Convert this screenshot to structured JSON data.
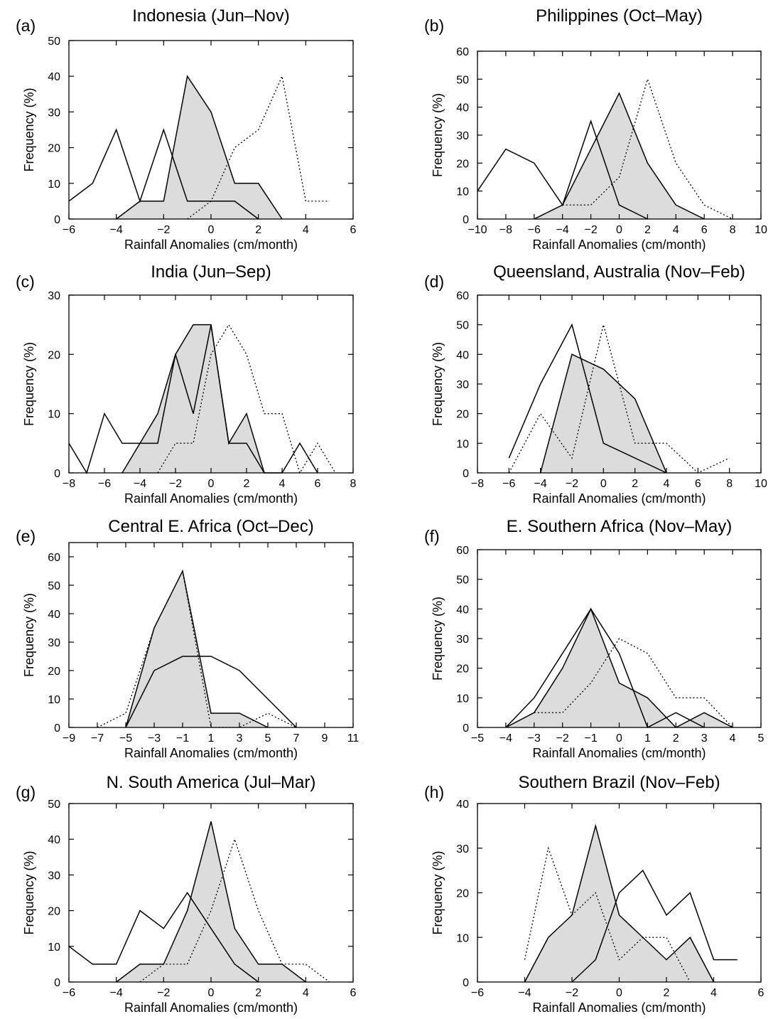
{
  "chart_data": [
    {
      "type": "line",
      "panel_label": "(a)",
      "title": "Indonesia (Jun–Nov)",
      "xlabel": "Rainfall Anomalies (cm/month)",
      "ylabel": "Frequency (%)",
      "xlim": [
        -6,
        6
      ],
      "ylim": [
        0,
        50
      ],
      "xticks": [
        -6,
        -4,
        -2,
        0,
        2,
        4,
        6
      ],
      "yticks": [
        0,
        10,
        20,
        30,
        40,
        50
      ],
      "grid": false,
      "series": [
        {
          "style": "shaded",
          "x": [
            -4,
            -3,
            -2,
            -1,
            0,
            1,
            2,
            3
          ],
          "y": [
            0,
            5,
            5,
            40,
            30,
            10,
            10,
            0
          ]
        },
        {
          "style": "solid",
          "x": [
            -6,
            -5,
            -4,
            -3,
            -2,
            -1,
            0,
            1,
            2
          ],
          "y": [
            5,
            10,
            25,
            5,
            25,
            5,
            5,
            5,
            0
          ]
        },
        {
          "style": "dotted",
          "x": [
            -1,
            0,
            1,
            2,
            3,
            4,
            5
          ],
          "y": [
            0,
            5,
            20,
            25,
            40,
            5,
            5
          ]
        }
      ]
    },
    {
      "type": "line",
      "panel_label": "(b)",
      "title": "Philippines (Oct–May)",
      "xlabel": "Rainfall Anomalies (cm/month)",
      "ylabel": "Frequency (%)",
      "xlim": [
        -10,
        10
      ],
      "ylim": [
        0,
        60
      ],
      "xticks": [
        -10,
        -8,
        -6,
        -4,
        -2,
        0,
        2,
        4,
        6,
        8,
        10
      ],
      "yticks": [
        0,
        10,
        20,
        30,
        40,
        50,
        60
      ],
      "grid": false,
      "series": [
        {
          "style": "shaded",
          "x": [
            -6,
            -4,
            -2,
            0,
            2,
            4,
            6
          ],
          "y": [
            0,
            5,
            25,
            45,
            20,
            5,
            0
          ]
        },
        {
          "style": "solid",
          "x": [
            -10,
            -8,
            -6,
            -4,
            -2,
            0,
            2
          ],
          "y": [
            10,
            25,
            20,
            5,
            35,
            5,
            0
          ]
        },
        {
          "style": "dotted",
          "x": [
            -4,
            -2,
            0,
            2,
            4,
            6,
            8
          ],
          "y": [
            5,
            5,
            15,
            50,
            20,
            5,
            0
          ]
        }
      ]
    },
    {
      "type": "line",
      "panel_label": "(c)",
      "title": "India (Jun–Sep)",
      "xlabel": "Rainfall Anomalies (cm/month)",
      "ylabel": "Frequency (%)",
      "xlim": [
        -8,
        8
      ],
      "ylim": [
        0,
        30
      ],
      "xticks": [
        -8,
        -6,
        -4,
        -2,
        0,
        2,
        4,
        6,
        8
      ],
      "yticks": [
        0,
        10,
        20,
        30
      ],
      "grid": false,
      "series": [
        {
          "style": "shaded",
          "x": [
            -5,
            -4,
            -3,
            -2,
            -1,
            0,
            1,
            2,
            3
          ],
          "y": [
            0,
            5,
            10,
            20,
            25,
            25,
            5,
            10,
            0
          ]
        },
        {
          "style": "solid",
          "x": [
            -8,
            -7,
            -6,
            -5,
            -4,
            -3,
            -2,
            -1,
            0,
            1,
            2,
            3,
            4,
            5,
            6
          ],
          "y": [
            5,
            0,
            10,
            5,
            5,
            5,
            20,
            10,
            25,
            5,
            5,
            0,
            0,
            5,
            0
          ]
        },
        {
          "style": "dotted",
          "x": [
            -3,
            -2,
            -1,
            0,
            1,
            2,
            3,
            4,
            5,
            6,
            7
          ],
          "y": [
            0,
            5,
            5,
            20,
            25,
            20,
            10,
            10,
            0,
            5,
            0
          ]
        }
      ]
    },
    {
      "type": "line",
      "panel_label": "(d)",
      "title": "Queensland, Australia (Nov–Feb)",
      "xlabel": "Rainfall Anomalies (cm/month)",
      "ylabel": "Frequency (%)",
      "xlim": [
        -8,
        10
      ],
      "ylim": [
        0,
        60
      ],
      "xticks": [
        -8,
        -6,
        -4,
        -2,
        0,
        2,
        4,
        6,
        8,
        10
      ],
      "yticks": [
        0,
        10,
        20,
        30,
        40,
        50,
        60
      ],
      "grid": false,
      "series": [
        {
          "style": "shaded",
          "x": [
            -4,
            -2,
            0,
            2,
            4
          ],
          "y": [
            0,
            40,
            35,
            25,
            0
          ]
        },
        {
          "style": "solid",
          "x": [
            -6,
            -4,
            -2,
            0,
            4
          ],
          "y": [
            5,
            30,
            50,
            10,
            0
          ]
        },
        {
          "style": "dotted",
          "x": [
            -6,
            -4,
            -2,
            0,
            2,
            4,
            6,
            8
          ],
          "y": [
            0,
            20,
            5,
            50,
            10,
            10,
            0,
            5
          ]
        }
      ]
    },
    {
      "type": "line",
      "panel_label": "(e)",
      "title": "Central E. Africa (Oct–Dec)",
      "xlabel": "Rainfall Anomalies (cm/month)",
      "ylabel": "Frequency (%)",
      "xlim": [
        -9,
        11
      ],
      "ylim": [
        0,
        65
      ],
      "xticks": [
        -9,
        -7,
        -5,
        -3,
        -1,
        1,
        3,
        5,
        7,
        9,
        11
      ],
      "yticks": [
        0,
        10,
        20,
        30,
        40,
        50,
        60
      ],
      "grid": false,
      "series": [
        {
          "style": "shaded",
          "x": [
            -5,
            -3,
            -1,
            1,
            3,
            5
          ],
          "y": [
            0,
            35,
            55,
            5,
            5,
            0
          ]
        },
        {
          "style": "solid",
          "x": [
            -5,
            -3,
            -1,
            1,
            3,
            5,
            7
          ],
          "y": [
            0,
            20,
            25,
            25,
            20,
            10,
            0
          ]
        },
        {
          "style": "dotted",
          "x": [
            -7,
            -5,
            -3,
            -1,
            1,
            3,
            5,
            7
          ],
          "y": [
            0,
            5,
            35,
            55,
            0,
            0,
            5,
            0
          ]
        }
      ]
    },
    {
      "type": "line",
      "panel_label": "(f)",
      "title": "E. Southern Africa (Nov–May)",
      "xlabel": "Rainfall Anomalies (cm/month)",
      "ylabel": "Frequency (%)",
      "xlim": [
        -5,
        5
      ],
      "ylim": [
        0,
        60
      ],
      "xticks": [
        -5,
        -4,
        -3,
        -2,
        -1,
        0,
        1,
        2,
        3,
        4,
        5
      ],
      "yticks": [
        0,
        10,
        20,
        30,
        40,
        50,
        60
      ],
      "grid": false,
      "series": [
        {
          "style": "shaded",
          "x": [
            -4,
            -3,
            -2,
            -1,
            0,
            1,
            2,
            3,
            4
          ],
          "y": [
            0,
            5,
            20,
            40,
            15,
            10,
            0,
            5,
            0
          ]
        },
        {
          "style": "solid",
          "x": [
            -4,
            -3,
            -2,
            -1,
            0,
            1,
            2,
            3
          ],
          "y": [
            0,
            10,
            25,
            40,
            25,
            0,
            5,
            0
          ]
        },
        {
          "style": "dotted",
          "x": [
            -3,
            -2,
            -1,
            0,
            1,
            2,
            3,
            4
          ],
          "y": [
            5,
            5,
            15,
            30,
            25,
            10,
            10,
            0
          ]
        }
      ]
    },
    {
      "type": "line",
      "panel_label": "(g)",
      "title": "N. South America (Jul–Mar)",
      "xlabel": "Rainfall Anomalies (cm/month)",
      "ylabel": "Frequency (%)",
      "xlim": [
        -6,
        6
      ],
      "ylim": [
        0,
        50
      ],
      "xticks": [
        -6,
        -4,
        -2,
        0,
        2,
        4,
        6
      ],
      "yticks": [
        0,
        10,
        20,
        30,
        40,
        50
      ],
      "grid": false,
      "series": [
        {
          "style": "shaded",
          "x": [
            -4,
            -3,
            -2,
            -1,
            0,
            1,
            2,
            3,
            4
          ],
          "y": [
            0,
            5,
            5,
            20,
            45,
            15,
            5,
            5,
            0
          ]
        },
        {
          "style": "solid",
          "x": [
            -6,
            -5,
            -4,
            -3,
            -2,
            -1,
            0,
            1,
            2
          ],
          "y": [
            10,
            5,
            5,
            20,
            15,
            25,
            15,
            5,
            0
          ]
        },
        {
          "style": "dotted",
          "x": [
            -3,
            -2,
            -1,
            0,
            1,
            2,
            3,
            4,
            5
          ],
          "y": [
            0,
            5,
            5,
            20,
            40,
            20,
            5,
            5,
            0
          ]
        }
      ]
    },
    {
      "type": "line",
      "panel_label": "(h)",
      "title": "Southern Brazil (Nov–Feb)",
      "xlabel": "Rainfall Anomalies (cm/month)",
      "ylabel": "Frequency (%)",
      "xlim": [
        -6,
        6
      ],
      "ylim": [
        0,
        40
      ],
      "xticks": [
        -6,
        -4,
        -2,
        0,
        2,
        4,
        6
      ],
      "yticks": [
        0,
        10,
        20,
        30,
        40
      ],
      "grid": false,
      "series": [
        {
          "style": "shaded",
          "x": [
            -4,
            -3,
            -2,
            -1,
            0,
            1,
            2,
            3,
            4
          ],
          "y": [
            0,
            10,
            15,
            35,
            15,
            10,
            5,
            10,
            0
          ]
        },
        {
          "style": "solid",
          "x": [
            -2,
            -1,
            0,
            1,
            2,
            3,
            4,
            5
          ],
          "y": [
            0,
            5,
            20,
            25,
            15,
            20,
            5,
            5
          ]
        },
        {
          "style": "dotted",
          "x": [
            -4,
            -3,
            -2,
            -1,
            0,
            1,
            2,
            3
          ],
          "y": [
            5,
            30,
            15,
            20,
            5,
            10,
            10,
            0
          ]
        }
      ]
    }
  ]
}
